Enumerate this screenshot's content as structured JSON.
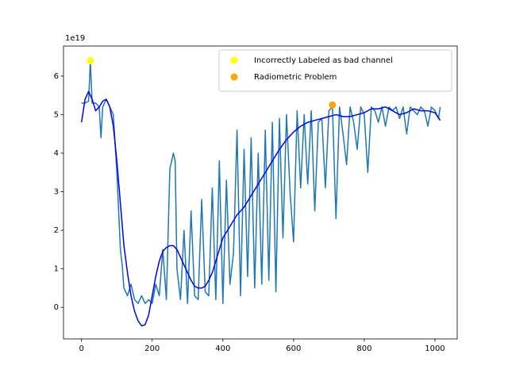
{
  "chart_data": {
    "type": "line",
    "y_offset_label": "1e19",
    "xlim": [
      -51,
      1063
    ],
    "ylim": [
      -0.82,
      6.78
    ],
    "xticks": [
      0,
      200,
      400,
      600,
      800,
      1000
    ],
    "yticks": [
      0,
      1,
      2,
      3,
      4,
      5,
      6
    ],
    "legend": "upper right",
    "series": [
      {
        "type": "line",
        "color": "#1f77b4",
        "x": [
          0,
          10,
          20,
          25,
          30,
          40,
          50,
          55,
          60,
          70,
          80,
          90,
          100,
          110,
          115,
          120,
          130,
          140,
          150,
          160,
          170,
          180,
          190,
          200,
          210,
          220,
          230,
          240,
          250,
          260,
          265,
          270,
          280,
          290,
          300,
          310,
          320,
          330,
          340,
          350,
          360,
          370,
          380,
          390,
          400,
          410,
          420,
          430,
          440,
          450,
          460,
          470,
          480,
          490,
          500,
          510,
          520,
          530,
          540,
          550,
          560,
          570,
          580,
          590,
          600,
          610,
          620,
          630,
          640,
          650,
          660,
          670,
          680,
          690,
          700,
          710,
          720,
          730,
          740,
          750,
          760,
          770,
          780,
          790,
          800,
          810,
          820,
          830,
          840,
          850,
          860,
          870,
          880,
          890,
          900,
          910,
          920,
          930,
          940,
          950,
          960,
          970,
          980,
          990,
          1000,
          1010,
          1015
        ],
        "values": [
          5.3,
          5.3,
          5.35,
          6.4,
          5.3,
          5.3,
          5.2,
          4.4,
          5.2,
          5.4,
          5.2,
          5.0,
          3.5,
          1.5,
          1.1,
          0.5,
          0.3,
          0.6,
          0.2,
          0.1,
          0.3,
          0.1,
          0.2,
          0.1,
          0.6,
          0.3,
          1.5,
          0.2,
          3.6,
          4.0,
          3.8,
          1.0,
          0.2,
          2.0,
          0.1,
          2.5,
          0.3,
          0.2,
          2.8,
          0.4,
          0.3,
          3.1,
          0.2,
          3.8,
          0.1,
          3.3,
          0.6,
          1.4,
          4.6,
          0.3,
          4.1,
          0.8,
          4.4,
          0.5,
          4.0,
          0.6,
          4.6,
          0.7,
          4.8,
          0.4,
          4.9,
          1.8,
          5.0,
          3.0,
          1.7,
          5.1,
          3.1,
          5.0,
          3.2,
          5.1,
          2.5,
          4.8,
          4.9,
          3.1,
          5.1,
          5.2,
          2.3,
          5.2,
          4.5,
          3.7,
          5.2,
          4.8,
          4.1,
          5.2,
          5.0,
          3.5,
          5.2,
          5.1,
          4.8,
          5.2,
          4.7,
          5.2,
          5.1,
          5.2,
          4.9,
          5.2,
          4.5,
          5.2,
          5.1,
          5.0,
          5.2,
          5.1,
          4.7,
          5.2,
          5.1,
          4.9,
          5.2
        ]
      },
      {
        "type": "line",
        "color": "#0000ff",
        "x": [
          0,
          10,
          20,
          30,
          40,
          50,
          60,
          70,
          80,
          90,
          100,
          110,
          120,
          130,
          140,
          150,
          160,
          170,
          180,
          190,
          200,
          210,
          220,
          230,
          240,
          250,
          260,
          270,
          280,
          290,
          300,
          310,
          320,
          330,
          340,
          350,
          360,
          370,
          380,
          390,
          400,
          420,
          440,
          460,
          480,
          500,
          520,
          540,
          560,
          580,
          600,
          620,
          640,
          660,
          680,
          700,
          720,
          740,
          760,
          780,
          800,
          820,
          840,
          860,
          880,
          900,
          920,
          940,
          960,
          980,
          1000,
          1015
        ],
        "values": [
          4.8,
          5.4,
          5.6,
          5.4,
          5.1,
          5.2,
          5.35,
          5.4,
          5.2,
          4.7,
          3.8,
          2.7,
          1.6,
          0.9,
          0.3,
          -0.1,
          -0.35,
          -0.48,
          -0.45,
          -0.2,
          0.3,
          0.8,
          1.2,
          1.45,
          1.55,
          1.6,
          1.6,
          1.5,
          1.3,
          1.1,
          0.9,
          0.7,
          0.55,
          0.5,
          0.5,
          0.55,
          0.7,
          0.9,
          1.2,
          1.5,
          1.8,
          2.1,
          2.4,
          2.6,
          2.9,
          3.2,
          3.5,
          3.8,
          4.1,
          4.35,
          4.55,
          4.7,
          4.8,
          4.85,
          4.9,
          4.95,
          5.0,
          4.95,
          4.95,
          5.0,
          5.05,
          5.15,
          5.15,
          5.2,
          5.1,
          5.0,
          5.05,
          5.15,
          5.1,
          5.1,
          5.05,
          4.85
        ]
      },
      {
        "type": "scatter",
        "name": "Incorrectly Labeled as bad channel",
        "color": "#ffff00",
        "x": [
          25
        ],
        "values": [
          6.4
        ]
      },
      {
        "type": "scatter",
        "name": "Radiometric Problem",
        "color": "#ffa500",
        "x": [
          710
        ],
        "values": [
          5.25
        ]
      }
    ]
  }
}
